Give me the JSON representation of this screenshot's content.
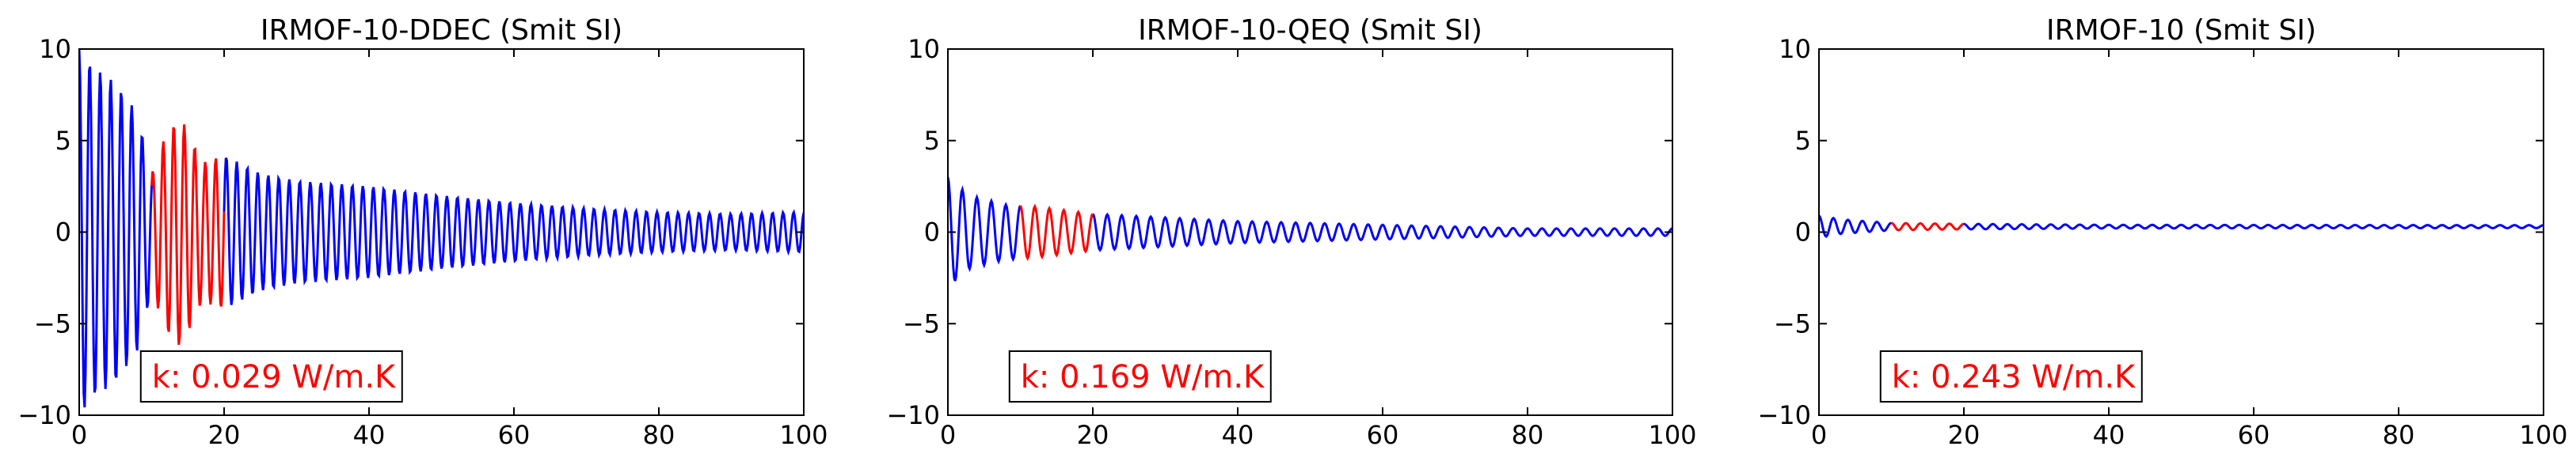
{
  "chart_data": [
    {
      "type": "line",
      "title": "IRMOF-10-DDEC (Smit SI)",
      "xlim": [
        0,
        100
      ],
      "ylim": [
        -10,
        10
      ],
      "xticks": [
        0,
        20,
        40,
        60,
        80,
        100
      ],
      "yticks": [
        -10,
        -5,
        0,
        5,
        10
      ],
      "grid": false,
      "annotation": "k: 0.029 W/m.K",
      "highlight_range": [
        10,
        20
      ],
      "colors": {
        "line": "#0000ff",
        "highlight": "#ff0000",
        "annotation": "#ff0000"
      },
      "signal": {
        "x_start": 0,
        "x_end": 100,
        "points": 800,
        "envelope": [
          [
            0,
            10
          ],
          [
            2,
            9
          ],
          [
            5,
            8.2
          ],
          [
            8,
            6.5
          ],
          [
            10,
            3.2
          ],
          [
            12,
            5.4
          ],
          [
            14,
            6.3
          ],
          [
            17,
            3.8
          ],
          [
            20,
            4.2
          ],
          [
            25,
            3.2
          ],
          [
            30,
            2.8
          ],
          [
            40,
            2.5
          ],
          [
            50,
            2.0
          ],
          [
            60,
            1.6
          ],
          [
            70,
            1.3
          ],
          [
            80,
            1.1
          ],
          [
            90,
            1.0
          ],
          [
            100,
            1.1
          ]
        ],
        "period": 1.45,
        "offset": 0
      }
    },
    {
      "type": "line",
      "title": "IRMOF-10-QEQ (Smit SI)",
      "xlim": [
        0,
        100
      ],
      "ylim": [
        -10,
        10
      ],
      "xticks": [
        0,
        20,
        40,
        60,
        80,
        100
      ],
      "yticks": [
        -10,
        -5,
        0,
        5,
        10
      ],
      "grid": false,
      "annotation": "k: 0.169 W/m.K",
      "highlight_range": [
        10,
        20
      ],
      "colors": {
        "line": "#0000ff",
        "highlight": "#ff0000",
        "annotation": "#ff0000"
      },
      "signal": {
        "x_start": 0,
        "x_end": 100,
        "points": 800,
        "envelope": [
          [
            0,
            3.0
          ],
          [
            3,
            2.0
          ],
          [
            8,
            1.5
          ],
          [
            12,
            1.4
          ],
          [
            20,
            1.0
          ],
          [
            30,
            0.8
          ],
          [
            40,
            0.6
          ],
          [
            60,
            0.4
          ],
          [
            80,
            0.2
          ],
          [
            100,
            0.2
          ]
        ],
        "period": 2.0,
        "offset": 0
      }
    },
    {
      "type": "line",
      "title": "IRMOF-10 (Smit SI)",
      "xlim": [
        0,
        100
      ],
      "ylim": [
        -10,
        10
      ],
      "xticks": [
        0,
        20,
        40,
        60,
        80,
        100
      ],
      "yticks": [
        -10,
        -5,
        0,
        5,
        10
      ],
      "grid": false,
      "annotation": "k: 0.243 W/m.K",
      "highlight_range": [
        10,
        20
      ],
      "colors": {
        "line": "#0000ff",
        "highlight": "#ff0000",
        "annotation": "#ff0000"
      },
      "signal": {
        "x_start": 0,
        "x_end": 100,
        "points": 800,
        "envelope": [
          [
            0,
            0.6
          ],
          [
            3,
            0.4
          ],
          [
            10,
            0.2
          ],
          [
            20,
            0.15
          ],
          [
            40,
            0.1
          ],
          [
            100,
            0.08
          ]
        ],
        "period": 2.0,
        "offset": 0.3
      }
    }
  ]
}
